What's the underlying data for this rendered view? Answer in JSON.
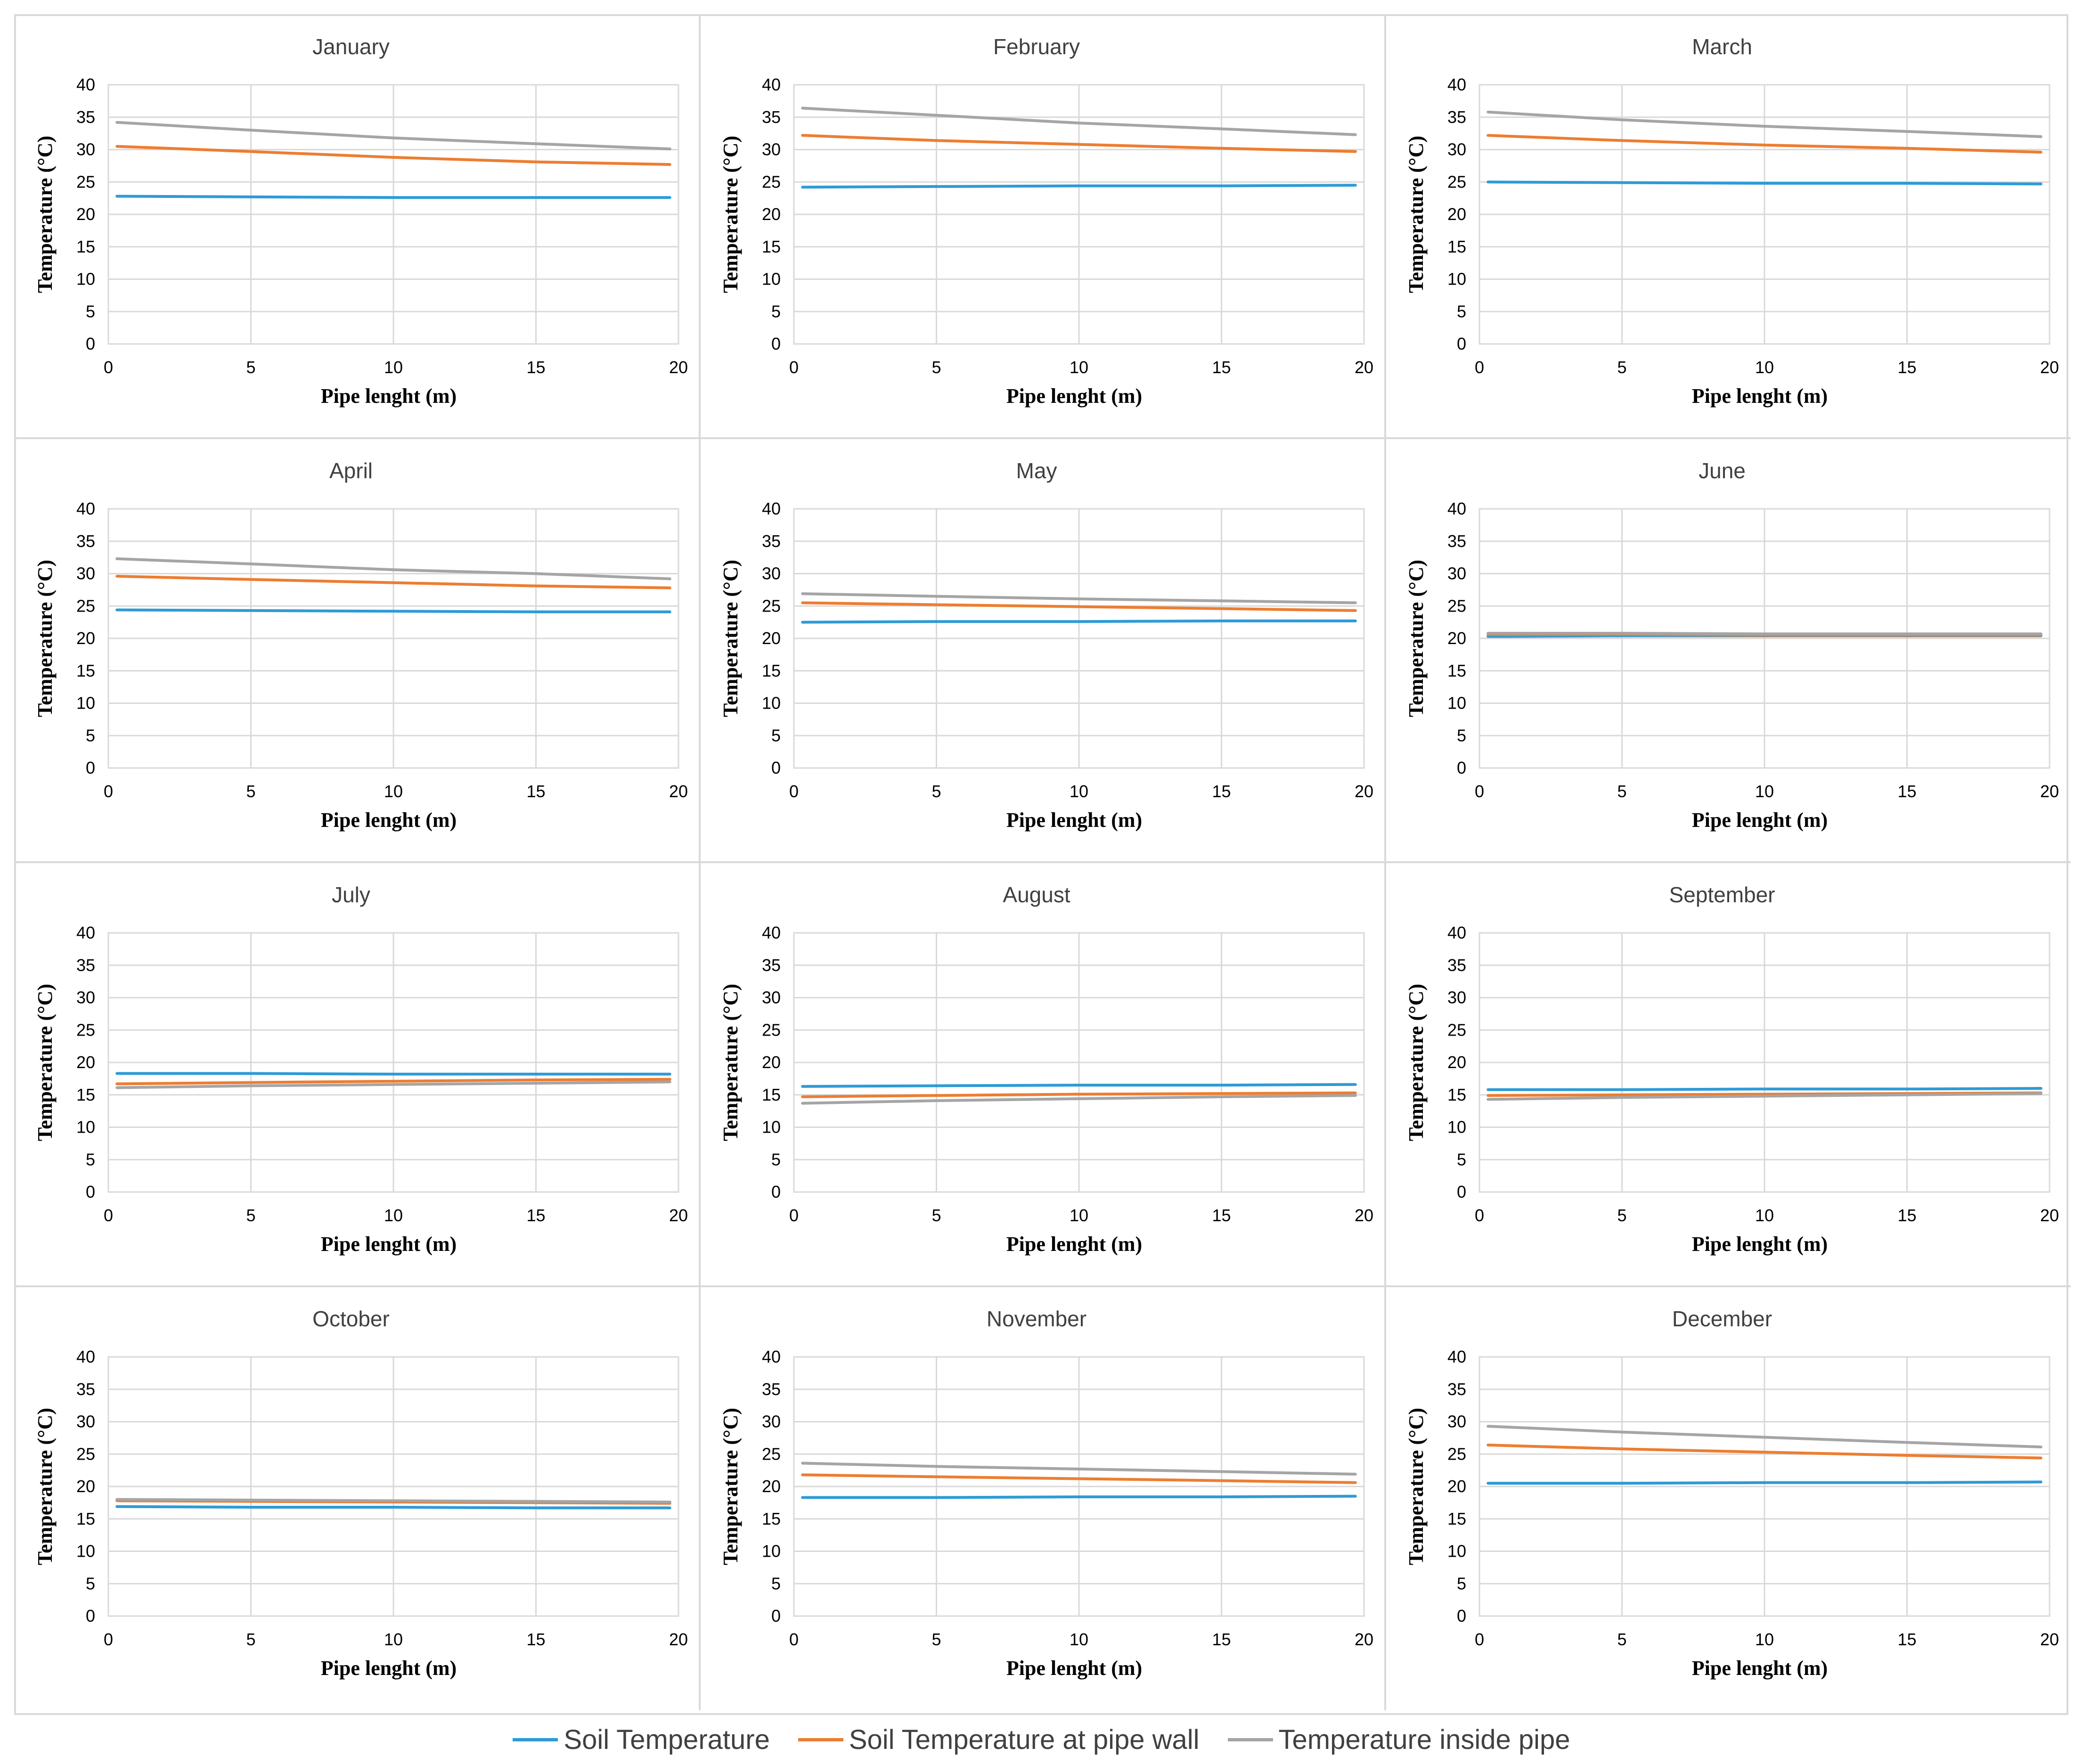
{
  "colors": {
    "soil": "#2e9bd6",
    "wall": "#ed7d31",
    "inside": "#a5a5a5",
    "grid": "#d9d9d9",
    "border": "#d9d9d9"
  },
  "legend": [
    {
      "label": "Soil Temperature",
      "color": "#2e9bd6"
    },
    {
      "label": "Soil Temperature at pipe wall",
      "color": "#ed7d31"
    },
    {
      "label": "Temperature inside pipe",
      "color": "#a5a5a5"
    }
  ],
  "axes": {
    "xlabel": "Pipe lenght (m)",
    "ylabel": "Temperature (°C)",
    "xticks": [
      0,
      5,
      10,
      15,
      20
    ],
    "yticks": [
      0,
      5,
      10,
      15,
      20,
      25,
      30,
      35,
      40
    ],
    "xlim": [
      0,
      20
    ],
    "ylim": [
      0,
      40
    ]
  },
  "chart_data": [
    {
      "type": "line",
      "title": "January",
      "x": [
        0.3,
        5,
        10,
        15,
        19.7
      ],
      "series": [
        {
          "name": "Soil Temperature",
          "values": [
            22.8,
            22.7,
            22.6,
            22.6,
            22.6
          ]
        },
        {
          "name": "Soil Temperature at pipe wall",
          "values": [
            30.5,
            29.7,
            28.8,
            28.1,
            27.7
          ]
        },
        {
          "name": "Temperature inside pipe",
          "values": [
            34.2,
            33.0,
            31.8,
            30.9,
            30.1
          ]
        }
      ]
    },
    {
      "type": "line",
      "title": "February",
      "x": [
        0.3,
        5,
        10,
        15,
        19.7
      ],
      "series": [
        {
          "name": "Soil Temperature",
          "values": [
            24.2,
            24.3,
            24.4,
            24.4,
            24.5
          ]
        },
        {
          "name": "Soil Temperature at pipe wall",
          "values": [
            32.2,
            31.4,
            30.8,
            30.2,
            29.7
          ]
        },
        {
          "name": "Temperature inside pipe",
          "values": [
            36.4,
            35.3,
            34.1,
            33.2,
            32.3
          ]
        }
      ]
    },
    {
      "type": "line",
      "title": "March",
      "x": [
        0.3,
        5,
        10,
        15,
        19.7
      ],
      "series": [
        {
          "name": "Soil Temperature",
          "values": [
            25.0,
            24.9,
            24.8,
            24.8,
            24.7
          ]
        },
        {
          "name": "Soil Temperature at pipe wall",
          "values": [
            32.2,
            31.4,
            30.7,
            30.2,
            29.6
          ]
        },
        {
          "name": "Temperature inside pipe",
          "values": [
            35.8,
            34.6,
            33.6,
            32.8,
            32.0
          ]
        }
      ]
    },
    {
      "type": "line",
      "title": "April",
      "x": [
        0.3,
        5,
        10,
        15,
        19.7
      ],
      "series": [
        {
          "name": "Soil Temperature",
          "values": [
            24.4,
            24.3,
            24.2,
            24.1,
            24.1
          ]
        },
        {
          "name": "Soil Temperature at pipe wall",
          "values": [
            29.6,
            29.1,
            28.6,
            28.1,
            27.8
          ]
        },
        {
          "name": "Temperature inside pipe",
          "values": [
            32.3,
            31.5,
            30.6,
            30.0,
            29.2
          ]
        }
      ]
    },
    {
      "type": "line",
      "title": "May",
      "x": [
        0.3,
        5,
        10,
        15,
        19.7
      ],
      "series": [
        {
          "name": "Soil Temperature",
          "values": [
            22.5,
            22.6,
            22.6,
            22.7,
            22.7
          ]
        },
        {
          "name": "Soil Temperature at pipe wall",
          "values": [
            25.5,
            25.2,
            24.9,
            24.6,
            24.3
          ]
        },
        {
          "name": "Temperature inside pipe",
          "values": [
            26.9,
            26.5,
            26.1,
            25.8,
            25.5
          ]
        }
      ]
    },
    {
      "type": "line",
      "title": "June",
      "x": [
        0.3,
        5,
        10,
        15,
        19.7
      ],
      "series": [
        {
          "name": "Soil Temperature",
          "values": [
            20.3,
            20.4,
            20.4,
            20.4,
            20.4
          ]
        },
        {
          "name": "Soil Temperature at pipe wall",
          "values": [
            20.6,
            20.6,
            20.5,
            20.5,
            20.5
          ]
        },
        {
          "name": "Temperature inside pipe",
          "values": [
            20.8,
            20.8,
            20.7,
            20.7,
            20.7
          ]
        }
      ]
    },
    {
      "type": "line",
      "title": "July",
      "x": [
        0.3,
        5,
        10,
        15,
        19.7
      ],
      "series": [
        {
          "name": "Soil Temperature",
          "values": [
            18.3,
            18.3,
            18.2,
            18.2,
            18.2
          ]
        },
        {
          "name": "Soil Temperature at pipe wall",
          "values": [
            16.7,
            16.9,
            17.1,
            17.3,
            17.4
          ]
        },
        {
          "name": "Temperature inside pipe",
          "values": [
            16.1,
            16.4,
            16.6,
            16.8,
            17.0
          ]
        }
      ]
    },
    {
      "type": "line",
      "title": "August",
      "x": [
        0.3,
        5,
        10,
        15,
        19.7
      ],
      "series": [
        {
          "name": "Soil Temperature",
          "values": [
            16.3,
            16.4,
            16.5,
            16.5,
            16.6
          ]
        },
        {
          "name": "Soil Temperature at pipe wall",
          "values": [
            14.7,
            14.9,
            15.1,
            15.2,
            15.3
          ]
        },
        {
          "name": "Temperature inside pipe",
          "values": [
            13.7,
            14.1,
            14.4,
            14.7,
            14.9
          ]
        }
      ]
    },
    {
      "type": "line",
      "title": "September",
      "x": [
        0.3,
        5,
        10,
        15,
        19.7
      ],
      "series": [
        {
          "name": "Soil Temperature",
          "values": [
            15.8,
            15.8,
            15.9,
            15.9,
            16.0
          ]
        },
        {
          "name": "Soil Temperature at pipe wall",
          "values": [
            14.9,
            15.0,
            15.1,
            15.2,
            15.3
          ]
        },
        {
          "name": "Temperature inside pipe",
          "values": [
            14.3,
            14.6,
            14.8,
            15.0,
            15.2
          ]
        }
      ]
    },
    {
      "type": "line",
      "title": "October",
      "x": [
        0.3,
        5,
        10,
        15,
        19.7
      ],
      "series": [
        {
          "name": "Soil Temperature",
          "values": [
            16.9,
            16.8,
            16.8,
            16.7,
            16.7
          ]
        },
        {
          "name": "Soil Temperature at pipe wall",
          "values": [
            17.8,
            17.7,
            17.6,
            17.5,
            17.4
          ]
        },
        {
          "name": "Temperature inside pipe",
          "values": [
            18.0,
            17.9,
            17.8,
            17.7,
            17.6
          ]
        }
      ]
    },
    {
      "type": "line",
      "title": "November",
      "x": [
        0.3,
        5,
        10,
        15,
        19.7
      ],
      "series": [
        {
          "name": "Soil Temperature",
          "values": [
            18.3,
            18.3,
            18.4,
            18.4,
            18.5
          ]
        },
        {
          "name": "Soil Temperature at pipe wall",
          "values": [
            21.8,
            21.5,
            21.2,
            20.9,
            20.6
          ]
        },
        {
          "name": "Temperature inside pipe",
          "values": [
            23.6,
            23.1,
            22.7,
            22.3,
            21.9
          ]
        }
      ]
    },
    {
      "type": "line",
      "title": "December",
      "x": [
        0.3,
        5,
        10,
        15,
        19.7
      ],
      "series": [
        {
          "name": "Soil Temperature",
          "values": [
            20.5,
            20.5,
            20.6,
            20.6,
            20.7
          ]
        },
        {
          "name": "Soil Temperature at pipe wall",
          "values": [
            26.4,
            25.8,
            25.3,
            24.8,
            24.4
          ]
        },
        {
          "name": "Temperature inside pipe",
          "values": [
            29.3,
            28.4,
            27.6,
            26.8,
            26.1
          ]
        }
      ]
    }
  ]
}
